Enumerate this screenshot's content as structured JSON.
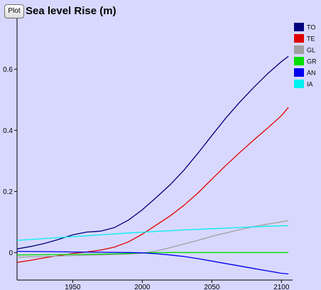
{
  "toolbar": {
    "plot_label": "Plot"
  },
  "chart_data": {
    "type": "line",
    "title": "Sea level Rise (m)",
    "xlabel": "",
    "ylabel": "",
    "xlim": [
      1910,
      2108
    ],
    "ylim": [
      -0.09,
      0.78
    ],
    "x_ticks": [
      1950,
      2000,
      2050,
      2100
    ],
    "y_ticks": [
      0,
      0.2,
      0.4,
      0.6
    ],
    "y_tick_labels": [
      "0",
      "0.2",
      "0.4",
      "0.6"
    ],
    "legend_position": "top-right",
    "grid": false,
    "background": "#d8d8ff",
    "series": [
      {
        "name": "TO",
        "color": "#00007f",
        "points": [
          [
            1910,
            0.012
          ],
          [
            1920,
            0.02
          ],
          [
            1930,
            0.03
          ],
          [
            1940,
            0.043
          ],
          [
            1950,
            0.058
          ],
          [
            1960,
            0.067
          ],
          [
            1970,
            0.07
          ],
          [
            1980,
            0.082
          ],
          [
            1990,
            0.106
          ],
          [
            2000,
            0.14
          ],
          [
            2010,
            0.18
          ],
          [
            2020,
            0.222
          ],
          [
            2030,
            0.27
          ],
          [
            2040,
            0.325
          ],
          [
            2050,
            0.383
          ],
          [
            2060,
            0.44
          ],
          [
            2070,
            0.492
          ],
          [
            2080,
            0.54
          ],
          [
            2090,
            0.585
          ],
          [
            2100,
            0.625
          ],
          [
            2105,
            0.642
          ]
        ]
      },
      {
        "name": "TE",
        "color": "#e00000",
        "points": [
          [
            1910,
            -0.032
          ],
          [
            1920,
            -0.025
          ],
          [
            1930,
            -0.017
          ],
          [
            1940,
            -0.01
          ],
          [
            1950,
            -0.003
          ],
          [
            1960,
            0.002
          ],
          [
            1970,
            0.008
          ],
          [
            1980,
            0.018
          ],
          [
            1990,
            0.035
          ],
          [
            2000,
            0.06
          ],
          [
            2010,
            0.09
          ],
          [
            2020,
            0.12
          ],
          [
            2030,
            0.155
          ],
          [
            2040,
            0.195
          ],
          [
            2050,
            0.24
          ],
          [
            2060,
            0.285
          ],
          [
            2070,
            0.327
          ],
          [
            2080,
            0.368
          ],
          [
            2090,
            0.407
          ],
          [
            2100,
            0.448
          ],
          [
            2105,
            0.475
          ]
        ]
      },
      {
        "name": "GL",
        "color": "#a0a0a0",
        "points": [
          [
            1910,
            -0.015
          ],
          [
            1930,
            -0.013
          ],
          [
            1950,
            -0.01
          ],
          [
            1970,
            -0.008
          ],
          [
            1990,
            -0.005
          ],
          [
            2000,
            -0.002
          ],
          [
            2010,
            0.005
          ],
          [
            2020,
            0.016
          ],
          [
            2030,
            0.028
          ],
          [
            2040,
            0.04
          ],
          [
            2050,
            0.053
          ],
          [
            2060,
            0.064
          ],
          [
            2070,
            0.075
          ],
          [
            2080,
            0.085
          ],
          [
            2090,
            0.093
          ],
          [
            2100,
            0.1
          ],
          [
            2105,
            0.105
          ]
        ]
      },
      {
        "name": "GR",
        "color": "#00dd00",
        "points": [
          [
            1910,
            -0.008
          ],
          [
            1930,
            -0.007
          ],
          [
            1950,
            -0.006
          ],
          [
            1970,
            -0.005
          ],
          [
            1990,
            -0.003
          ],
          [
            2000,
            -0.001
          ],
          [
            2020,
            0.0
          ],
          [
            2040,
            0.0
          ],
          [
            2060,
            0.0
          ],
          [
            2080,
            0.0
          ],
          [
            2105,
            0.0
          ]
        ]
      },
      {
        "name": "AN",
        "color": "#0000ee",
        "points": [
          [
            1910,
            0.004
          ],
          [
            1930,
            0.003
          ],
          [
            1950,
            0.002
          ],
          [
            1970,
            0.001
          ],
          [
            1990,
            0.0
          ],
          [
            2000,
            -0.001
          ],
          [
            2010,
            -0.004
          ],
          [
            2020,
            -0.008
          ],
          [
            2030,
            -0.013
          ],
          [
            2040,
            -0.02
          ],
          [
            2050,
            -0.028
          ],
          [
            2060,
            -0.036
          ],
          [
            2070,
            -0.044
          ],
          [
            2080,
            -0.052
          ],
          [
            2090,
            -0.06
          ],
          [
            2100,
            -0.068
          ],
          [
            2105,
            -0.07
          ]
        ]
      },
      {
        "name": "IA",
        "color": "#00f0f0",
        "points": [
          [
            1910,
            0.04
          ],
          [
            1930,
            0.046
          ],
          [
            1950,
            0.052
          ],
          [
            1970,
            0.058
          ],
          [
            1990,
            0.064
          ],
          [
            2010,
            0.069
          ],
          [
            2030,
            0.074
          ],
          [
            2050,
            0.078
          ],
          [
            2070,
            0.082
          ],
          [
            2090,
            0.086
          ],
          [
            2105,
            0.088
          ]
        ]
      }
    ]
  }
}
